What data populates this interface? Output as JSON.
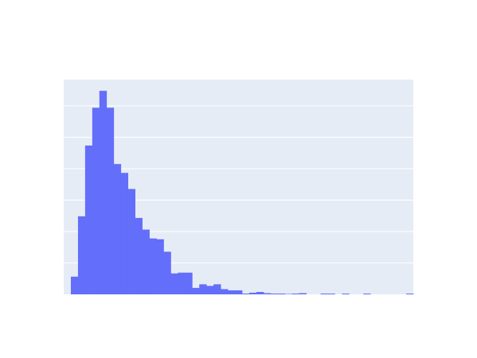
{
  "chart_data": {
    "type": "bar",
    "subtype": "histogram",
    "title": "",
    "xlabel": "",
    "ylabel": "",
    "show_tick_labels": false,
    "grid": true,
    "legend": "none",
    "ylim": [
      0,
      1
    ],
    "n_bins": 49,
    "values": [
      0.0,
      0.0824,
      0.3633,
      0.6929,
      0.8689,
      0.9476,
      0.8689,
      0.6067,
      0.5655,
      0.4906,
      0.3558,
      0.3015,
      0.2603,
      0.2566,
      0.1985,
      0.0974,
      0.1011,
      0.1011,
      0.03,
      0.0468,
      0.0393,
      0.0468,
      0.0243,
      0.0187,
      0.0187,
      0.0037,
      0.0075,
      0.0112,
      0.0056,
      0.0037,
      0.0037,
      0.0019,
      0.0037,
      0.0056,
      0.0,
      0.0,
      0.0037,
      0.0037,
      0.0,
      0.0037,
      0.0,
      0.0,
      0.0037,
      0.0,
      0.0,
      0.0,
      0.0,
      0.0,
      0.0037
    ],
    "colors": {
      "bar": "#636efa",
      "plot_background": "#e5ecf6",
      "grid": "#ffffff"
    }
  }
}
